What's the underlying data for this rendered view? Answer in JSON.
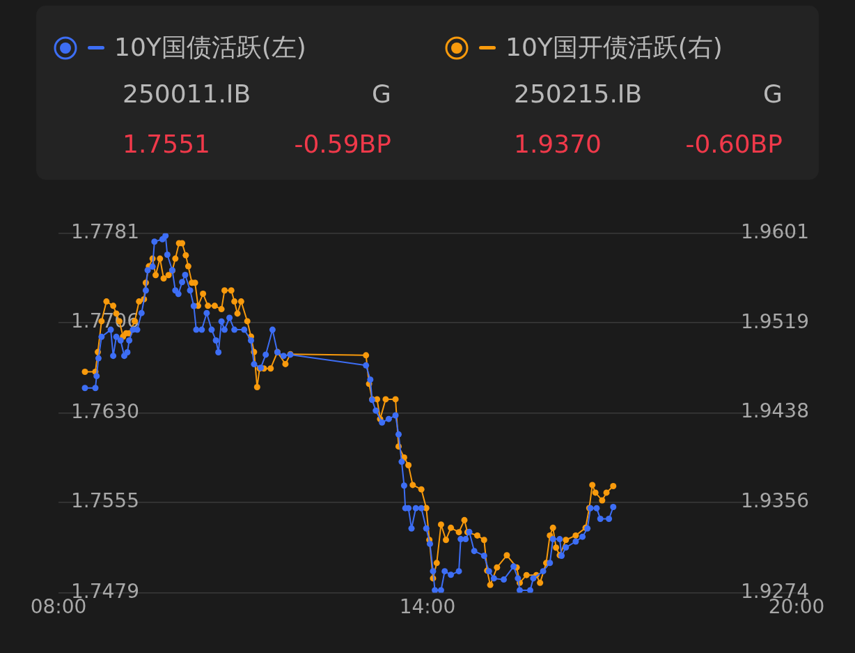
{
  "chart_data": {
    "type": "line",
    "legend": "top",
    "grid": "y",
    "marker": "circle",
    "line_style": "solid",
    "annotations": [
      "250011.IB",
      "G",
      "1.7551",
      "-0.59BP",
      "250215.IB",
      "G",
      "1.9370",
      "-0.60BP"
    ],
    "xlim": [
      8,
      20
    ],
    "xticks": [
      {
        "value": 8,
        "label": "08:00"
      },
      {
        "value": 14,
        "label": "14:00"
      },
      {
        "value": 20,
        "label": "20:00"
      }
    ],
    "ylim": [
      1.7479,
      1.7781
    ],
    "yticks": [
      1.7479,
      1.7555,
      {
        "value": 1.763,
        "label": "1.7630"
      },
      1.7706,
      1.7781
    ],
    "y2lim": [
      1.9274,
      1.9601
    ],
    "y2ticks": [
      1.9274,
      1.9356,
      1.9438,
      1.9519,
      1.9601
    ],
    "series": [
      {
        "name": "10Y国债活跃(左)",
        "color": "#3d6ef5",
        "x": [
          8.43,
          8.6,
          8.62,
          8.65,
          8.7,
          8.85,
          8.89,
          8.94,
          9.01,
          9.07,
          9.12,
          9.15,
          9.21,
          9.28,
          9.35,
          9.42,
          9.45,
          9.53,
          9.56,
          9.69,
          9.74,
          9.77,
          9.85,
          9.9,
          9.95,
          10.01,
          10.06,
          10.14,
          10.2,
          10.24,
          10.33,
          10.41,
          10.49,
          10.56,
          10.6,
          10.65,
          10.7,
          10.78,
          10.86,
          11.02,
          11.13,
          11.18,
          11.29,
          11.37,
          11.48,
          11.56,
          11.66,
          11.77,
          13.0,
          13.07,
          13.1,
          13.16,
          13.26,
          13.37,
          13.48,
          13.53,
          13.58,
          13.62,
          13.64,
          13.69,
          13.74,
          13.81,
          13.9,
          13.98,
          14.04,
          14.09,
          14.12,
          14.22,
          14.28,
          14.38,
          14.51,
          14.54,
          14.62,
          14.68,
          14.76,
          14.92,
          15.0,
          15.08,
          15.24,
          15.4,
          15.47,
          15.5,
          15.67,
          15.72,
          15.88,
          15.99,
          16.04,
          16.15,
          16.18,
          16.25,
          16.41,
          16.52,
          16.6,
          16.65,
          16.75,
          16.81,
          16.95,
          17.02
        ],
        "values": [
          1.7651,
          1.7651,
          1.7661,
          1.7676,
          1.7694,
          1.77,
          1.7678,
          1.7694,
          1.7691,
          1.7678,
          1.7681,
          1.7691,
          1.77,
          1.77,
          1.7714,
          1.7733,
          1.775,
          1.7753,
          1.7774,
          1.7776,
          1.7779,
          1.7763,
          1.775,
          1.7733,
          1.773,
          1.774,
          1.7746,
          1.7733,
          1.772,
          1.77,
          1.77,
          1.7714,
          1.77,
          1.7691,
          1.7681,
          1.7707,
          1.77,
          1.771,
          1.77,
          1.77,
          1.7691,
          1.7671,
          1.7668,
          1.7679,
          1.77,
          1.7681,
          1.7678,
          1.7679,
          1.767,
          1.7658,
          1.7641,
          1.7632,
          1.7622,
          1.7625,
          1.7628,
          1.7612,
          1.7589,
          1.7569,
          1.755,
          1.755,
          1.7533,
          1.755,
          1.755,
          1.7533,
          1.752,
          1.7497,
          1.7481,
          1.7481,
          1.7497,
          1.7494,
          1.7497,
          1.7524,
          1.7524,
          1.753,
          1.7514,
          1.751,
          1.7497,
          1.7491,
          1.749,
          1.7501,
          1.7491,
          1.7481,
          1.7481,
          1.7491,
          1.7497,
          1.7504,
          1.7524,
          1.7524,
          1.751,
          1.7517,
          1.7522,
          1.7526,
          1.7533,
          1.755,
          1.755,
          1.7541,
          1.7541,
          1.7551
        ]
      },
      {
        "name": "10Y国开债活跃(右)",
        "color": "#f89a0c",
        "axis": "y2",
        "x": [
          8.43,
          8.6,
          8.64,
          8.7,
          8.78,
          8.89,
          8.94,
          8.99,
          9.05,
          9.1,
          9.15,
          9.24,
          9.31,
          9.39,
          9.42,
          9.47,
          9.53,
          9.58,
          9.65,
          9.71,
          9.79,
          9.85,
          9.9,
          9.96,
          10.01,
          10.07,
          10.11,
          10.17,
          10.22,
          10.27,
          10.35,
          10.43,
          10.54,
          10.65,
          10.7,
          10.81,
          10.86,
          10.91,
          10.97,
          11.07,
          11.13,
          11.18,
          11.23,
          11.27,
          11.34,
          11.45,
          11.56,
          11.69,
          11.77,
          13.0,
          13.05,
          13.1,
          13.18,
          13.23,
          13.32,
          13.48,
          13.53,
          13.62,
          13.69,
          13.76,
          13.9,
          13.98,
          14.03,
          14.09,
          14.15,
          14.22,
          14.3,
          14.38,
          14.51,
          14.6,
          14.65,
          14.81,
          14.92,
          14.97,
          15.02,
          15.13,
          15.29,
          15.45,
          15.5,
          15.61,
          15.77,
          15.83,
          15.93,
          15.99,
          16.04,
          16.09,
          16.15,
          16.25,
          16.41,
          16.57,
          16.63,
          16.68,
          16.73,
          16.84,
          16.91,
          17.02
        ],
        "values": [
          1.9475,
          1.9475,
          1.9493,
          1.9521,
          1.9539,
          1.9535,
          1.9528,
          1.9521,
          1.9507,
          1.951,
          1.951,
          1.9521,
          1.9539,
          1.9541,
          1.9556,
          1.9571,
          1.9578,
          1.9563,
          1.9578,
          1.956,
          1.9563,
          1.9567,
          1.9578,
          1.9592,
          1.9592,
          1.9581,
          1.9571,
          1.9556,
          1.9556,
          1.9535,
          1.9546,
          1.9535,
          1.9535,
          1.9532,
          1.9549,
          1.9549,
          1.9539,
          1.9528,
          1.9539,
          1.9521,
          1.9507,
          1.9493,
          1.9461,
          1.9478,
          1.9478,
          1.9478,
          1.9493,
          1.9482,
          1.9491,
          1.949,
          1.9464,
          1.945,
          1.945,
          1.9432,
          1.945,
          1.945,
          1.9407,
          1.9397,
          1.939,
          1.9372,
          1.9368,
          1.9351,
          1.9322,
          1.9287,
          1.9301,
          1.9336,
          1.9322,
          1.9333,
          1.9329,
          1.934,
          1.9329,
          1.9326,
          1.9322,
          1.9294,
          1.9281,
          1.9297,
          1.9308,
          1.9297,
          1.9283,
          1.929,
          1.929,
          1.9283,
          1.9301,
          1.9326,
          1.9333,
          1.9315,
          1.9308,
          1.9322,
          1.9326,
          1.9333,
          1.9351,
          1.9372,
          1.9365,
          1.9358,
          1.9365,
          1.9371
        ]
      }
    ]
  }
}
